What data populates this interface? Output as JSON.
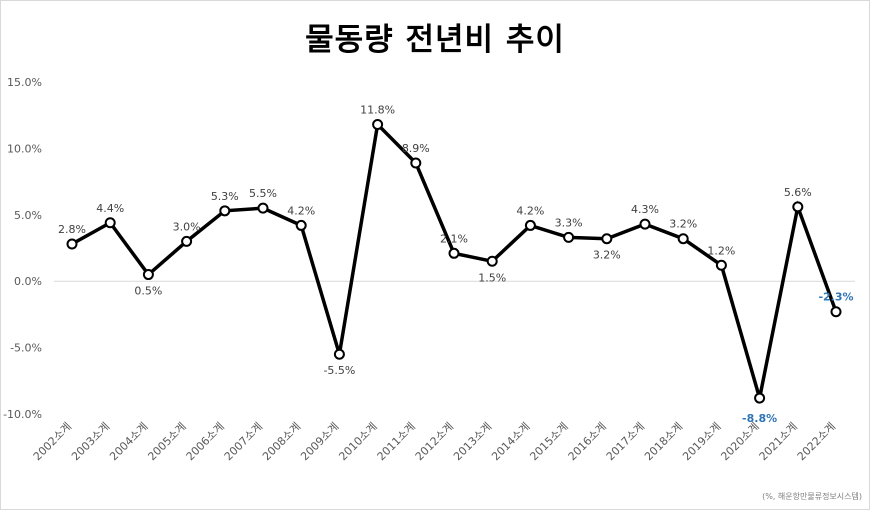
{
  "chart_data": {
    "type": "line",
    "title": "물동량 전년비 추이",
    "categories": [
      "2002소계",
      "2003소계",
      "2004소계",
      "2005소계",
      "2006소계",
      "2007소계",
      "2008소계",
      "2009소계",
      "2010소계",
      "2011소계",
      "2012소계",
      "2013소계",
      "2014소계",
      "2015소계",
      "2016소계",
      "2017소계",
      "2018소계",
      "2019소계",
      "2020소계",
      "2021소계",
      "2022소계"
    ],
    "values": [
      2.8,
      4.4,
      0.5,
      3.0,
      5.3,
      5.5,
      4.2,
      -5.5,
      11.8,
      8.9,
      2.1,
      1.5,
      4.2,
      3.3,
      3.2,
      4.3,
      3.2,
      1.2,
      -8.8,
      5.6,
      -2.3
    ],
    "data_labels": [
      "2.8%",
      "4.4%",
      "0.5%",
      "3.0%",
      "5.3%",
      "5.5%",
      "4.2%",
      "-5.5%",
      "11.8%",
      "8.9%",
      "2.1%",
      "1.5%",
      "4.2%",
      "3.3%",
      "3.2%",
      "4.3%",
      "3.2%",
      "1.2%",
      "-8.8%",
      "5.6%",
      "-2.3%"
    ],
    "highlighted_labels": [
      18,
      20
    ],
    "ylim": [
      -10,
      15
    ],
    "yticks": [
      15,
      10,
      5,
      0,
      -5,
      -10
    ],
    "ytick_labels": [
      "15.0%",
      "10.0%",
      "5.0%",
      "0.0%",
      "-5.0%",
      "-10.0%"
    ],
    "grid": false,
    "zero_line": true,
    "legend": "none",
    "source_note": "(%, 해운항만물류정보시스템)",
    "colors": {
      "line": "#000000",
      "marker_fill": "#ffffff",
      "highlight": "#2e75b6",
      "label": "#404040",
      "axis_text": "#595959",
      "zero_line": "#d9d9d9"
    }
  }
}
